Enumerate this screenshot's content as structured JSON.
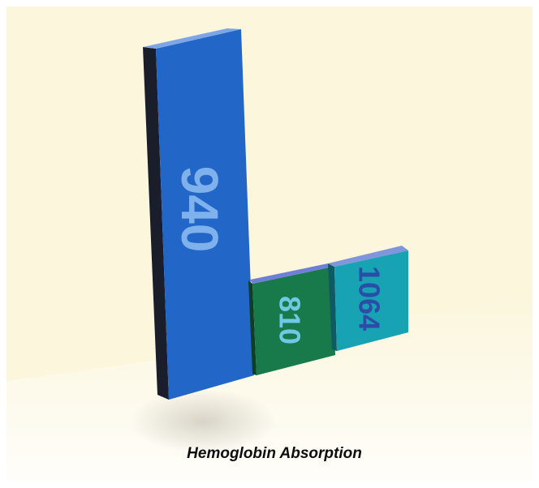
{
  "chart_data": {
    "type": "bar",
    "categories": [
      "940",
      "810",
      "1064"
    ],
    "values": [
      940,
      810,
      1064
    ],
    "title": "",
    "caption": "Hemoglobin Absorption",
    "xlabel": "",
    "ylabel": "",
    "grid": false,
    "legend": "none",
    "colors": {
      "bars": [
        "#2266c8",
        "#18794a",
        "#17a3b3"
      ],
      "bar_tops": [
        "#7da6e6",
        "#6f7fd8",
        "#7f96dc"
      ],
      "bar_sides": [
        "#1a1d2a",
        "#0f3e26",
        "#0e5a63"
      ],
      "labels": [
        "#7fb2ec",
        "#6fc9e6",
        "#2a4ea8"
      ],
      "background": "#fbf6dc"
    }
  }
}
